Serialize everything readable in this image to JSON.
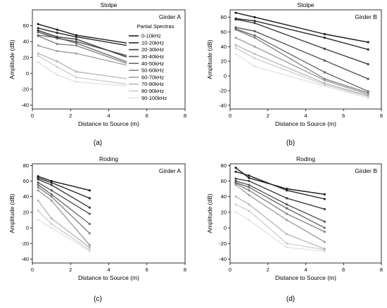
{
  "figure": {
    "captions": [
      "(a)",
      "(b)",
      "(c)",
      "(d)"
    ]
  },
  "legend": {
    "title": "Partial Spectras",
    "entries": [
      "0-10kHz",
      "10-20kHz",
      "20-30kHz",
      "30-40kHz",
      "40-50kHz",
      "50-60kHz",
      "60-70kHz",
      "70-80kHz",
      "80-90kHz",
      "90-100kHz"
    ],
    "placement": "inside panel (a), right side",
    "colors": [
      "#1a1a1a",
      "#262626",
      "#3d3d3d",
      "#555555",
      "#6b6b6b",
      "#858585",
      "#a0a0a0",
      "#b9b9b9",
      "#d0d0d0",
      "#e3e3e3"
    ]
  },
  "chart_data": [
    {
      "type": "line",
      "title": "Stolpe",
      "annotation": "Girder A",
      "xlabel": "Distance to Source (m)",
      "ylabel": "Amplitude (dB)",
      "xlim": [
        0,
        8
      ],
      "ylim": [
        -45,
        80
      ],
      "xticks": [
        0,
        2,
        4,
        6,
        8
      ],
      "yticks": [
        -40,
        -20,
        0,
        20,
        40,
        60
      ],
      "grid": false,
      "series": [
        {
          "name": "0-10kHz",
          "x": [
            0.3,
            1.3,
            2.3,
            5.0
          ],
          "y": [
            62,
            55,
            48,
            38
          ]
        },
        {
          "name": "10-20kHz",
          "x": [
            0.3,
            1.3,
            2.3,
            5.0
          ],
          "y": [
            57,
            51,
            46,
            35
          ]
        },
        {
          "name": "20-30kHz",
          "x": [
            0.3,
            1.3,
            2.3,
            5.0
          ],
          "y": [
            54,
            46,
            43,
            20
          ]
        },
        {
          "name": "30-40kHz",
          "x": [
            0.3,
            1.3,
            2.3,
            5.0
          ],
          "y": [
            52,
            44,
            40,
            22
          ]
        },
        {
          "name": "40-50kHz",
          "x": [
            0.3,
            1.3,
            2.3,
            5.0
          ],
          "y": [
            48,
            45,
            38,
            14
          ]
        },
        {
          "name": "50-60kHz",
          "x": [
            0.3,
            1.3,
            2.3,
            5.0
          ],
          "y": [
            47,
            37,
            35,
            12
          ]
        },
        {
          "name": "60-70kHz",
          "x": [
            0.3,
            1.3,
            2.3,
            5.0
          ],
          "y": [
            35,
            28,
            25,
            10
          ]
        },
        {
          "name": "70-80kHz",
          "x": [
            0.3,
            1.3,
            2.3,
            5.0
          ],
          "y": [
            25,
            15,
            2,
            -7
          ]
        },
        {
          "name": "80-90kHz",
          "x": [
            0.3,
            1.3,
            2.3,
            5.0
          ],
          "y": [
            22,
            8,
            -5,
            -14
          ]
        },
        {
          "name": "90-100kHz",
          "x": [
            0.3,
            1.3,
            2.3,
            5.0
          ],
          "y": [
            14,
            -2,
            -11,
            -16
          ]
        }
      ]
    },
    {
      "type": "line",
      "title": "Stolpe",
      "annotation": "Girder B",
      "xlabel": "Distance to Source (m)",
      "ylabel": "Amplitude (dB)",
      "xlim": [
        0,
        8
      ],
      "ylim": [
        -45,
        90
      ],
      "xticks": [
        0,
        2,
        4,
        6,
        8
      ],
      "yticks": [
        -40,
        -20,
        0,
        20,
        40,
        60,
        80
      ],
      "grid": false,
      "series": [
        {
          "name": "0-10kHz",
          "x": [
            0.3,
            1.3,
            5.0,
            7.3
          ],
          "y": [
            86,
            80,
            57,
            46
          ]
        },
        {
          "name": "10-20kHz",
          "x": [
            0.3,
            1.3,
            5.0,
            7.3
          ],
          "y": [
            78,
            75,
            52,
            36
          ]
        },
        {
          "name": "20-30kHz",
          "x": [
            0.3,
            1.3,
            5.0,
            7.3
          ],
          "y": [
            77,
            72,
            37,
            16
          ]
        },
        {
          "name": "30-40kHz",
          "x": [
            0.3,
            1.3,
            5.0,
            7.3
          ],
          "y": [
            66,
            61,
            21,
            -4
          ]
        },
        {
          "name": "40-50kHz",
          "x": [
            0.3,
            1.3,
            5.0,
            7.3
          ],
          "y": [
            64,
            55,
            5,
            -21
          ]
        },
        {
          "name": "50-60kHz",
          "x": [
            0.3,
            1.3,
            5.0,
            7.3
          ],
          "y": [
            63,
            52,
            -4,
            -23
          ]
        },
        {
          "name": "60-70kHz",
          "x": [
            0.3,
            1.3,
            5.0,
            7.3
          ],
          "y": [
            52,
            40,
            -6,
            -25
          ]
        },
        {
          "name": "70-80kHz",
          "x": [
            0.3,
            1.3,
            5.0,
            7.3
          ],
          "y": [
            42,
            30,
            -10,
            -27
          ]
        },
        {
          "name": "80-90kHz",
          "x": [
            0.3,
            1.3,
            5.0,
            7.3
          ],
          "y": [
            38,
            24,
            -12,
            -28
          ]
        },
        {
          "name": "90-100kHz",
          "x": [
            0.3,
            1.3,
            5.0,
            7.3
          ],
          "y": [
            30,
            13,
            -14,
            -30
          ]
        }
      ]
    },
    {
      "type": "line",
      "title": "Roding",
      "annotation": "Girder A",
      "xlabel": "Distance to Source (m)",
      "ylabel": "Amplitude (dB)",
      "xlim": [
        0,
        8
      ],
      "ylim": [
        -45,
        82
      ],
      "xticks": [
        0,
        2,
        4,
        6,
        8
      ],
      "yticks": [
        -40,
        -20,
        0,
        20,
        40,
        60,
        80
      ],
      "grid": false,
      "series": [
        {
          "name": "0-10kHz",
          "x": [
            0.3,
            1.0,
            3.0
          ],
          "y": [
            66,
            60,
            48
          ]
        },
        {
          "name": "10-20kHz",
          "x": [
            0.3,
            1.0,
            3.0
          ],
          "y": [
            64,
            58,
            38
          ]
        },
        {
          "name": "20-30kHz",
          "x": [
            0.3,
            1.0,
            3.0
          ],
          "y": [
            62,
            55,
            26
          ]
        },
        {
          "name": "30-40kHz",
          "x": [
            0.3,
            1.0,
            3.0
          ],
          "y": [
            58,
            48,
            18
          ]
        },
        {
          "name": "40-50kHz",
          "x": [
            0.3,
            1.0,
            3.0
          ],
          "y": [
            55,
            43,
            5
          ]
        },
        {
          "name": "50-60kHz",
          "x": [
            0.3,
            1.0,
            3.0
          ],
          "y": [
            52,
            40,
            -7
          ]
        },
        {
          "name": "60-70kHz",
          "x": [
            0.3,
            1.0,
            3.0
          ],
          "y": [
            48,
            35,
            -22
          ]
        },
        {
          "name": "70-80kHz",
          "x": [
            0.3,
            1.0,
            3.0
          ],
          "y": [
            35,
            12,
            -25
          ]
        },
        {
          "name": "80-90kHz",
          "x": [
            0.3,
            1.0,
            3.0
          ],
          "y": [
            22,
            5,
            -28
          ]
        },
        {
          "name": "90-100kHz",
          "x": [
            0.3,
            1.0,
            3.0
          ],
          "y": [
            10,
            0,
            -30
          ]
        }
      ]
    },
    {
      "type": "line",
      "title": "Roding",
      "annotation": "Girder B",
      "xlabel": "Distance to Source (m)",
      "ylabel": "Amplitude (dB)",
      "xlim": [
        0,
        8
      ],
      "ylim": [
        -45,
        82
      ],
      "xticks": [
        0,
        2,
        4,
        6,
        8
      ],
      "yticks": [
        -40,
        -20,
        0,
        20,
        40,
        60,
        80
      ],
      "grid": false,
      "series": [
        {
          "name": "0-10kHz",
          "x": [
            0.3,
            1.0,
            3.0,
            5.0
          ],
          "y": [
            77,
            64,
            50,
            43
          ]
        },
        {
          "name": "10-20kHz",
          "x": [
            0.3,
            1.0,
            3.0,
            5.0
          ],
          "y": [
            72,
            67,
            48,
            37
          ]
        },
        {
          "name": "20-30kHz",
          "x": [
            0.3,
            1.0,
            3.0,
            5.0
          ],
          "y": [
            63,
            60,
            38,
            24
          ]
        },
        {
          "name": "30-40kHz",
          "x": [
            0.3,
            1.0,
            3.0,
            5.0
          ],
          "y": [
            60,
            55,
            30,
            8
          ]
        },
        {
          "name": "40-50kHz",
          "x": [
            0.3,
            1.0,
            3.0,
            5.0
          ],
          "y": [
            58,
            52,
            25,
            0
          ]
        },
        {
          "name": "50-60kHz",
          "x": [
            0.3,
            1.0,
            3.0,
            5.0
          ],
          "y": [
            57,
            48,
            18,
            -5
          ]
        },
        {
          "name": "60-70kHz",
          "x": [
            0.3,
            1.0,
            3.0,
            5.0
          ],
          "y": [
            55,
            42,
            10,
            -18
          ]
        },
        {
          "name": "70-80kHz",
          "x": [
            0.3,
            1.0,
            3.0,
            5.0
          ],
          "y": [
            40,
            30,
            -8,
            -27
          ]
        },
        {
          "name": "80-90kHz",
          "x": [
            0.3,
            1.0,
            3.0,
            5.0
          ],
          "y": [
            30,
            22,
            -20,
            -28
          ]
        },
        {
          "name": "90-100kHz",
          "x": [
            0.3,
            1.0,
            3.0,
            5.0
          ],
          "y": [
            20,
            10,
            -25,
            -30
          ]
        }
      ]
    }
  ]
}
